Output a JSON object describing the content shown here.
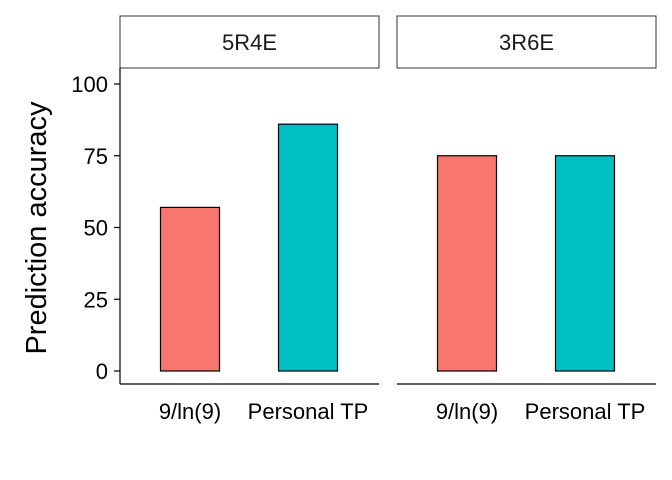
{
  "chart_data": {
    "type": "bar",
    "ylabel": "Prediction accuracy",
    "xlabel": "",
    "ylim": [
      0,
      100
    ],
    "yticks": [
      0,
      25,
      50,
      75,
      100
    ],
    "grid": false,
    "legend": "none",
    "panels": [
      {
        "strip": "5R4E",
        "categories": [
          "9/ln(9)",
          "Personal TP"
        ],
        "values": [
          57,
          86
        ],
        "colors": [
          "#F8766D",
          "#00BFC4"
        ]
      },
      {
        "strip": "3R6E",
        "categories": [
          "9/ln(9)",
          "Personal TP"
        ],
        "values": [
          75,
          75
        ],
        "colors": [
          "#F8766D",
          "#00BFC4"
        ]
      }
    ]
  }
}
